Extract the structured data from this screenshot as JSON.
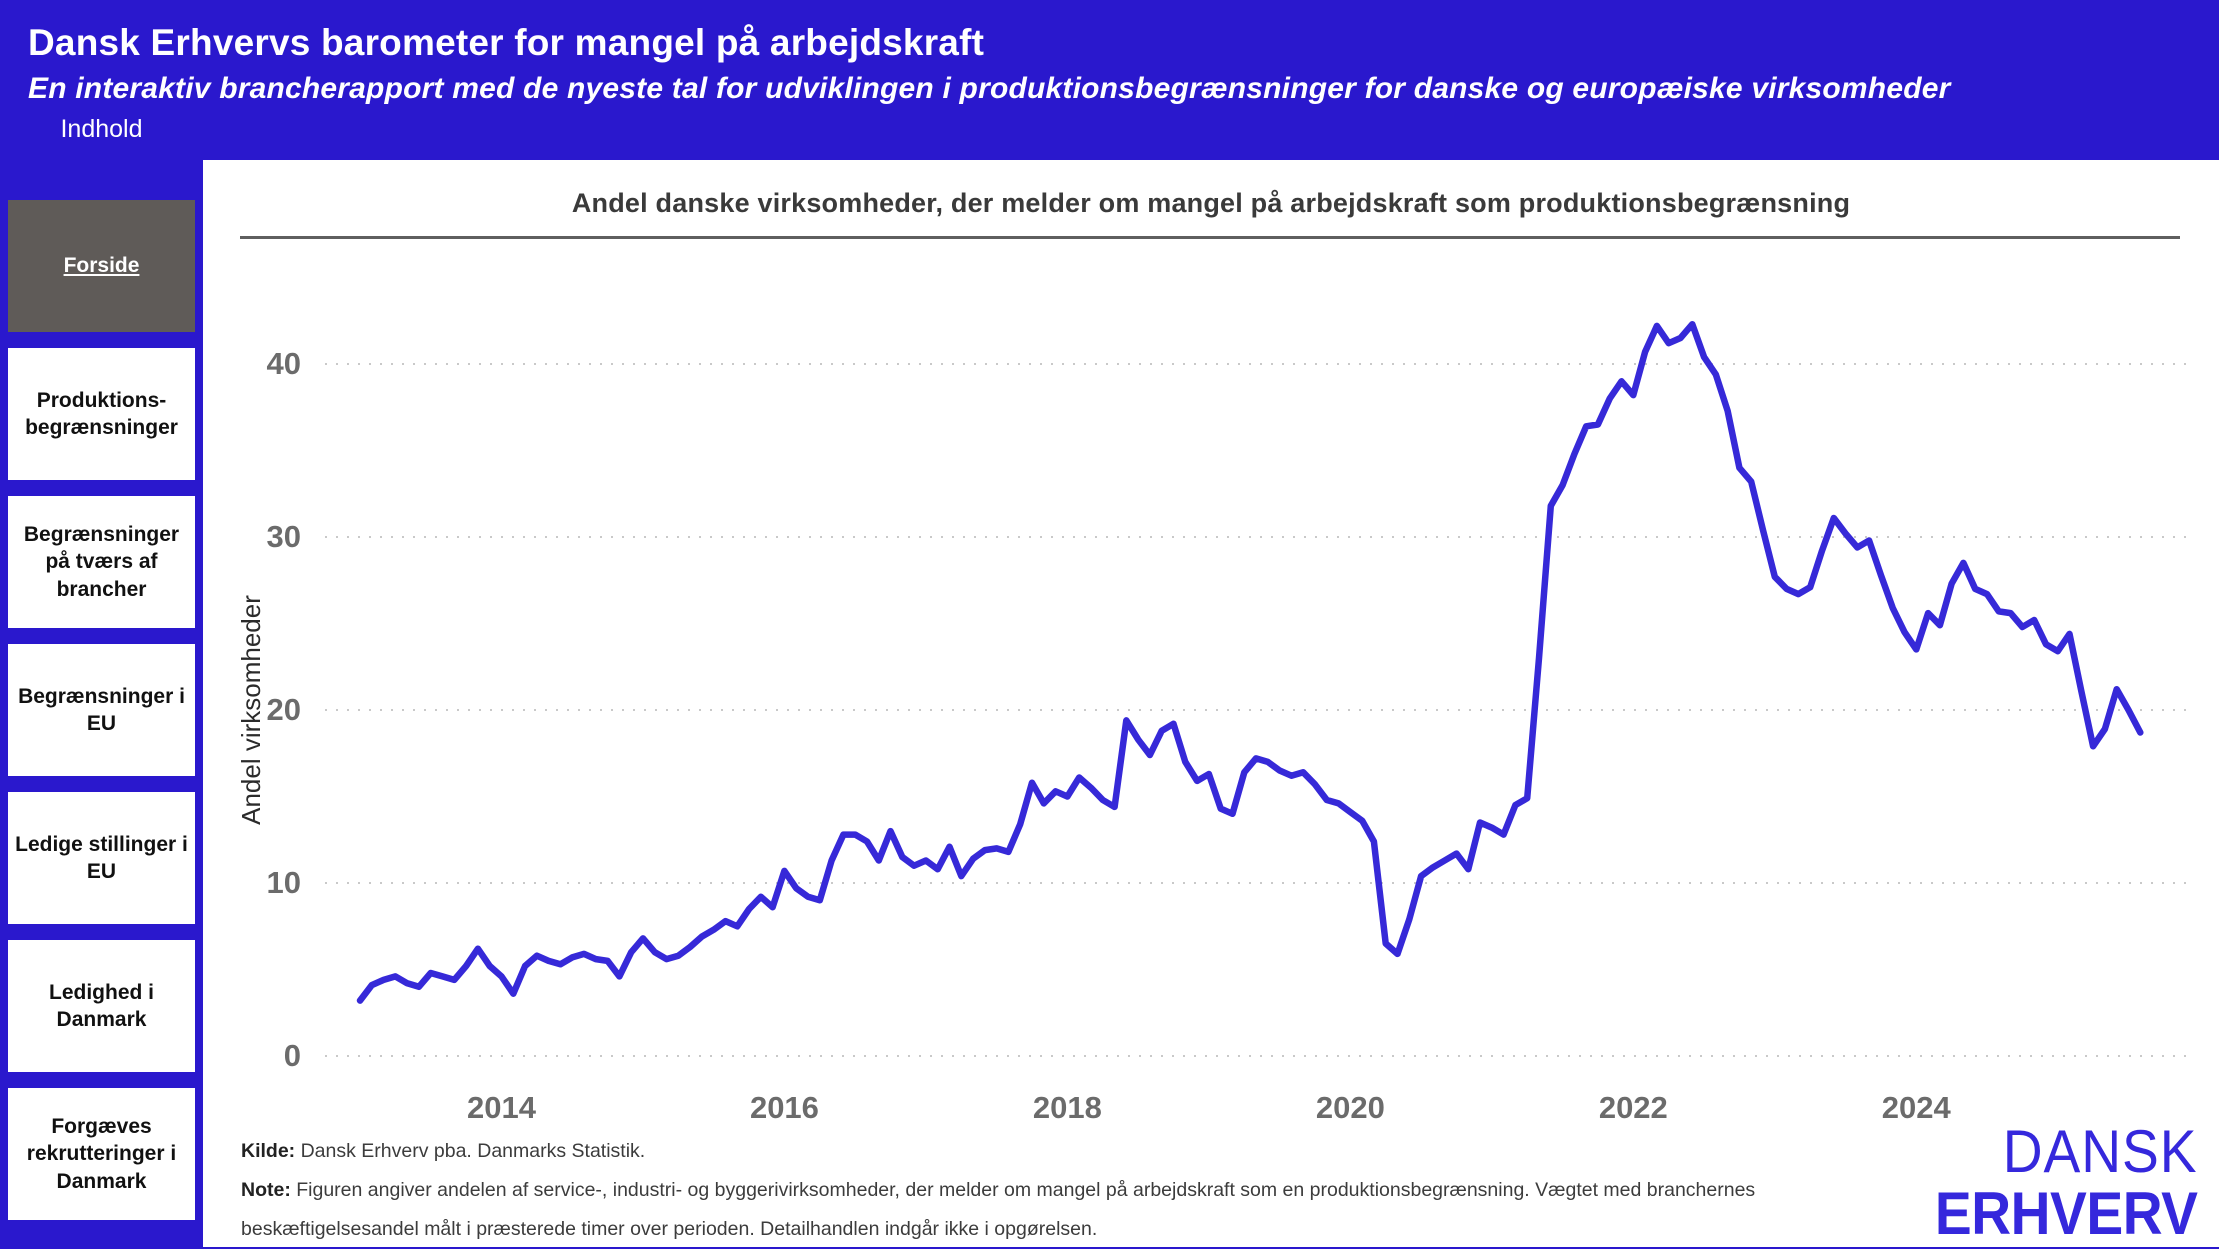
{
  "header": {
    "title": "Dansk Erhvervs barometer for mangel på arbejdskraft",
    "subtitle": "En interaktiv brancherapport med de nyeste tal for udviklingen i produktionsbegrænsninger for danske og europæiske virksomheder"
  },
  "sidebar": {
    "title": "Indhold",
    "items": [
      {
        "label": "Forside",
        "active": true
      },
      {
        "label": "Produktions- begrænsninger",
        "active": false
      },
      {
        "label": "Begrænsninger på tværs af brancher",
        "active": false
      },
      {
        "label": "Begrænsninger i EU",
        "active": false
      },
      {
        "label": "Ledige stillinger i EU",
        "active": false
      },
      {
        "label": "Ledighed i Danmark",
        "active": false
      },
      {
        "label": "Forgæves rekrutteringer i Danmark",
        "active": false
      }
    ]
  },
  "chart": {
    "title": "Andel danske virksomheder, der melder om mangel på arbejdskraft som produktionsbegrænsning"
  },
  "chart_data": {
    "type": "line",
    "title": "Andel danske virksomheder, der melder om mangel på arbejdskraft som produktionsbegrænsning",
    "ylabel": "Andel virksomheder",
    "xlabel": "",
    "ylim": [
      0,
      44
    ],
    "yticks": [
      0,
      10,
      20,
      30,
      40
    ],
    "grid": "dotted-horizontal",
    "legend": "none",
    "line_color": "#3629d8",
    "frequency": "monthly",
    "start": "2013-01",
    "end": "2025-08",
    "xticks": [
      {
        "label": "2014",
        "month_index": 12
      },
      {
        "label": "2016",
        "month_index": 36
      },
      {
        "label": "2018",
        "month_index": 60
      },
      {
        "label": "2020",
        "month_index": 84
      },
      {
        "label": "2022",
        "month_index": 108
      },
      {
        "label": "2024",
        "month_index": 132
      }
    ],
    "values": [
      3.2,
      4.1,
      4.4,
      4.6,
      4.2,
      4.0,
      4.8,
      4.6,
      4.4,
      5.2,
      6.2,
      5.2,
      4.6,
      3.6,
      5.2,
      5.8,
      5.5,
      5.3,
      5.7,
      5.9,
      5.6,
      5.5,
      4.6,
      6.0,
      6.8,
      6.0,
      5.6,
      5.8,
      6.3,
      6.9,
      7.3,
      7.8,
      7.5,
      8.5,
      9.2,
      8.6,
      10.7,
      9.7,
      9.2,
      9.0,
      11.3,
      12.8,
      12.8,
      12.4,
      11.3,
      13.0,
      11.5,
      11.0,
      11.3,
      10.8,
      12.1,
      10.4,
      11.4,
      11.9,
      12.0,
      11.8,
      13.4,
      15.8,
      14.6,
      15.3,
      15.0,
      16.1,
      15.5,
      14.8,
      14.4,
      19.4,
      18.3,
      17.4,
      18.8,
      19.2,
      17.0,
      15.9,
      16.3,
      14.3,
      14.0,
      16.4,
      17.2,
      17.0,
      16.5,
      16.2,
      16.4,
      15.7,
      14.8,
      14.6,
      14.1,
      13.6,
      12.4,
      6.5,
      5.9,
      7.9,
      10.4,
      10.9,
      11.3,
      11.7,
      10.8,
      13.5,
      13.2,
      12.8,
      14.5,
      14.9,
      23.0,
      31.8,
      33.0,
      34.8,
      36.4,
      36.5,
      38.0,
      39.0,
      38.2,
      40.7,
      42.2,
      41.2,
      41.5,
      42.3,
      40.4,
      39.4,
      37.3,
      34.0,
      33.2,
      30.4,
      27.7,
      27.0,
      26.7,
      27.1,
      29.2,
      31.1,
      30.2,
      29.4,
      29.8,
      27.8,
      25.9,
      24.5,
      23.5,
      25.6,
      24.9,
      27.3,
      28.5,
      27.0,
      26.7,
      25.7,
      25.6,
      24.8,
      25.2,
      23.8,
      23.4,
      24.4,
      21.1,
      17.9,
      18.9,
      21.2,
      20.0,
      18.7
    ]
  },
  "footer": {
    "kilde_label": "Kilde:",
    "kilde_text": " Dansk Erhverv pba. Danmarks Statistik.",
    "note_label": "Note:",
    "note_text": " Figuren angiver andelen af service-, industri- og byggerivirksomheder, der melder om mangel på arbejdskraft som en produktionsbegrænsning. Vægtet med branchernes beskæftigelsesandel målt i præsterede timer over perioden. Detailhandlen indgår ikke i opgørelsen."
  },
  "logo": {
    "line1": "DANSK",
    "line2": "ERHVERV"
  },
  "colors": {
    "background_blue": "#2a18cd",
    "line_blue": "#3629d8",
    "logo_blue": "#3528dc",
    "active_button_gray": "#5f5b58",
    "axis_text_gray": "#6b6b6b",
    "gridline_gray": "#c9c9c9"
  }
}
